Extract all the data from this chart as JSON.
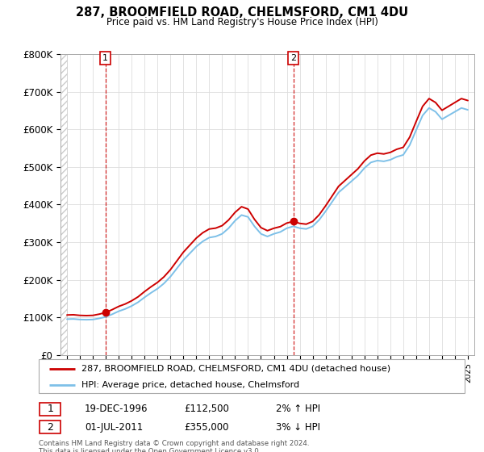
{
  "title_line1": "287, BROOMFIELD ROAD, CHELMSFORD, CM1 4DU",
  "title_line2": "Price paid vs. HM Land Registry's House Price Index (HPI)",
  "ylim": [
    0,
    800000
  ],
  "yticks": [
    0,
    100000,
    200000,
    300000,
    400000,
    500000,
    600000,
    700000,
    800000
  ],
  "ytick_labels": [
    "£0",
    "£100K",
    "£200K",
    "£300K",
    "£400K",
    "£500K",
    "£600K",
    "£700K",
    "£800K"
  ],
  "hpi_color": "#7dc0e8",
  "price_color": "#cc0000",
  "marker_color": "#cc0000",
  "grid_color": "#dddddd",
  "background_color": "#ffffff",
  "sale1_x": 1996.97,
  "sale1_y": 112500,
  "sale1_label": "1",
  "sale2_x": 2011.5,
  "sale2_y": 355000,
  "sale2_label": "2",
  "vline1_x": 1996.97,
  "vline2_x": 2011.5,
  "legend_line1": "287, BROOMFIELD ROAD, CHELMSFORD, CM1 4DU (detached house)",
  "legend_line2": "HPI: Average price, detached house, Chelmsford",
  "table_row1": [
    "1",
    "19-DEC-1996",
    "£112,500",
    "2% ↑ HPI"
  ],
  "table_row2": [
    "2",
    "01-JUL-2011",
    "£355,000",
    "3% ↓ HPI"
  ],
  "footnote": "Contains HM Land Registry data © Crown copyright and database right 2024.\nThis data is licensed under the Open Government Licence v3.0.",
  "xlim_start": 1993.5,
  "xlim_end": 2025.5,
  "hpi_values": [
    95000,
    95500,
    94000,
    93500,
    94000,
    97000,
    101000,
    108000,
    116000,
    122000,
    130000,
    140000,
    153000,
    165000,
    176000,
    190000,
    208000,
    230000,
    252000,
    270000,
    288000,
    302000,
    312000,
    315000,
    322000,
    337000,
    357000,
    372000,
    367000,
    342000,
    322000,
    315000,
    322000,
    327000,
    337000,
    342000,
    337000,
    335000,
    342000,
    359000,
    382000,
    407000,
    432000,
    447000,
    462000,
    477000,
    497000,
    512000,
    517000,
    515000,
    519000,
    527000,
    532000,
    558000,
    598000,
    637000,
    657000,
    647000,
    627000,
    637000,
    647000,
    657000,
    652000
  ],
  "years_hpi": [
    1994,
    1994.5,
    1995,
    1995.5,
    1996,
    1996.5,
    1997,
    1997.5,
    1998,
    1998.5,
    1999,
    1999.5,
    2000,
    2000.5,
    2001,
    2001.5,
    2002,
    2002.5,
    2003,
    2003.5,
    2004,
    2004.5,
    2005,
    2005.5,
    2006,
    2006.5,
    2007,
    2007.5,
    2008,
    2008.5,
    2009,
    2009.5,
    2010,
    2010.5,
    2011,
    2011.5,
    2012,
    2012.5,
    2013,
    2013.5,
    2014,
    2014.5,
    2015,
    2015.5,
    2016,
    2016.5,
    2017,
    2017.5,
    2018,
    2018.5,
    2019,
    2019.5,
    2020,
    2020.5,
    2021,
    2021.5,
    2022,
    2022.5,
    2023,
    2023.5,
    2024,
    2024.5,
    2025
  ]
}
